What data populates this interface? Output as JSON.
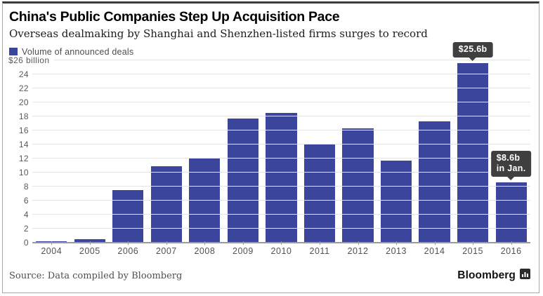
{
  "header": {
    "title": "China's Public Companies Step Up Acquisition Pace",
    "subtitle": "Overseas dealmaking by Shanghai and Shenzhen-listed firms surges to record"
  },
  "legend": {
    "label": "Volume of announced deals",
    "swatch_color": "#3c459c"
  },
  "chart_data": {
    "type": "bar",
    "title": "China's Public Companies Step Up Acquisition Pace",
    "subtitle": "Overseas dealmaking by Shanghai and Shenzhen-listed firms surges to record",
    "series_name": "Volume of announced deals",
    "categories": [
      "2004",
      "2005",
      "2006",
      "2007",
      "2008",
      "2009",
      "2010",
      "2011",
      "2012",
      "2013",
      "2014",
      "2015",
      "2016"
    ],
    "values": [
      0.1,
      0.5,
      7.5,
      10.9,
      12.0,
      17.7,
      18.5,
      14.0,
      16.3,
      11.7,
      17.3,
      25.6,
      8.6
    ],
    "unit": "$ billion",
    "ylim": [
      0,
      26
    ],
    "ytick_step": 2,
    "ytick_top_label": "$26 billion",
    "grid": "horizontal",
    "legend_position": "top-left",
    "bar_color": "#3c459c",
    "annotations": [
      {
        "category": "2015",
        "lines": [
          "$25.6b"
        ]
      },
      {
        "category": "2016",
        "lines": [
          "$8.6b",
          "in Jan."
        ]
      }
    ]
  },
  "footer": {
    "source": "Source: Data compiled by Bloomberg",
    "brand": "Bloomberg",
    "brand_icon": "bar-chart-logo"
  }
}
